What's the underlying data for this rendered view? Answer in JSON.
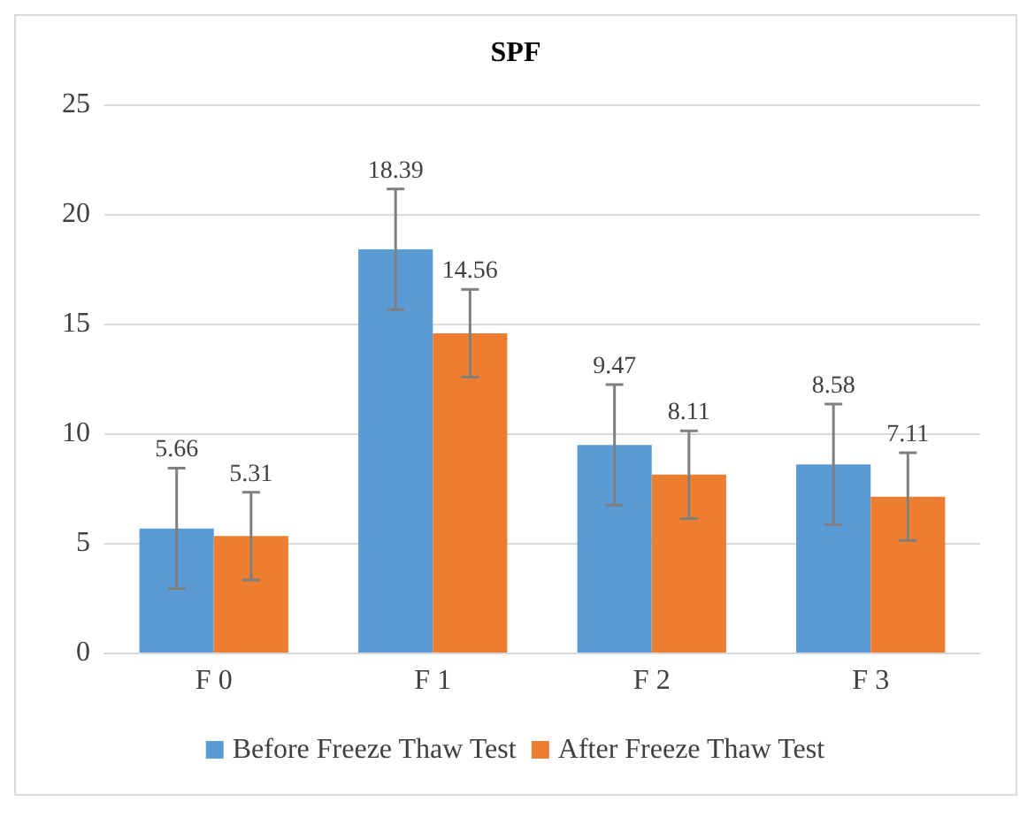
{
  "chart_data": {
    "type": "bar",
    "title": "SPF",
    "categories": [
      "F 0",
      "F 1",
      "F 2",
      "F 3"
    ],
    "series": [
      {
        "name": "Before Freeze Thaw Test",
        "color": "#5b9bd5",
        "values": [
          5.66,
          18.39,
          9.47,
          8.58
        ],
        "errors": [
          2.75,
          2.75,
          2.75,
          2.75
        ]
      },
      {
        "name": "After Freeze Thaw Test",
        "color": "#ed7d31",
        "values": [
          5.31,
          14.56,
          8.11,
          7.11
        ],
        "errors": [
          2.0,
          2.0,
          2.0,
          2.0
        ]
      }
    ],
    "ylim": [
      0,
      25
    ],
    "yticks": [
      0,
      5,
      10,
      15,
      20,
      25
    ],
    "grid": "y",
    "legend": "bottom",
    "data_labels": true
  }
}
